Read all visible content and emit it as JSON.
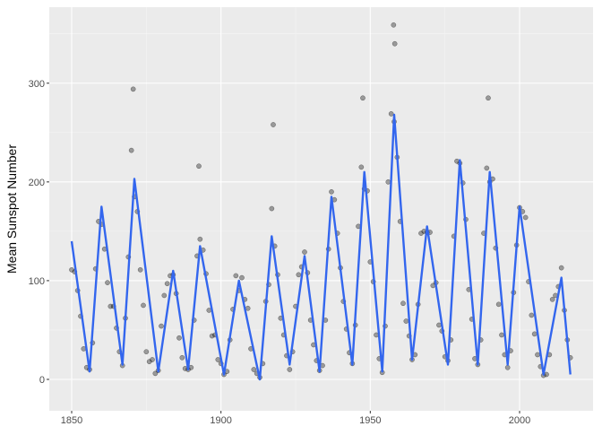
{
  "chart_data": {
    "type": "scatter",
    "ylabel": "Mean Sunspot Number",
    "xlim": [
      1842.5,
      2024.6
    ],
    "ylim": [
      -31.8,
      377
    ],
    "xticks": [
      1850,
      1900,
      1950,
      2000
    ],
    "yticks": [
      0,
      100,
      200,
      300
    ],
    "grid": true,
    "point_color": "#000000",
    "line_color": "#3366ee",
    "x": [
      1850,
      1851,
      1852,
      1853,
      1854,
      1855,
      1856,
      1857,
      1858,
      1859,
      1860,
      1861,
      1862,
      1863,
      1864,
      1865,
      1866,
      1867,
      1868,
      1869,
      1870,
      1871,
      1872,
      1873,
      1874,
      1875,
      1876,
      1877,
      1878,
      1879,
      1880,
      1881,
      1882,
      1883,
      1884,
      1885,
      1886,
      1887,
      1888,
      1889,
      1890,
      1891,
      1892,
      1893,
      1894,
      1895,
      1896,
      1897,
      1898,
      1899,
      1900,
      1901,
      1902,
      1903,
      1904,
      1905,
      1906,
      1907,
      1908,
      1909,
      1910,
      1911,
      1912,
      1913,
      1914,
      1915,
      1916,
      1917,
      1918,
      1919,
      1920,
      1921,
      1922,
      1923,
      1924,
      1925,
      1926,
      1927,
      1928,
      1929,
      1930,
      1931,
      1932,
      1933,
      1934,
      1935,
      1936,
      1937,
      1938,
      1939,
      1940,
      1941,
      1942,
      1943,
      1944,
      1945,
      1946,
      1947,
      1948,
      1949,
      1950,
      1951,
      1952,
      1953,
      1954,
      1955,
      1956,
      1957,
      1958,
      1959,
      1960,
      1961,
      1962,
      1963,
      1964,
      1965,
      1966,
      1967,
      1968,
      1969,
      1970,
      1971,
      1972,
      1973,
      1974,
      1975,
      1976,
      1977,
      1978,
      1979,
      1980,
      1981,
      1982,
      1983,
      1984,
      1985,
      1986,
      1987,
      1988,
      1989,
      1990,
      1991,
      1992,
      1993,
      1994,
      1995,
      1996,
      1997,
      1998,
      1999,
      2000,
      2001,
      2002,
      2003,
      2004,
      2005,
      2006,
      2007,
      2008,
      2009,
      2010,
      2011,
      2012,
      2013,
      2014,
      2015,
      2016,
      2017,
      1870.6,
      1957.8,
      1958.2,
      1989.5,
      1947.5,
      1917.5,
      1892.6
    ],
    "values": [
      111,
      109,
      90,
      64,
      31,
      12,
      10,
      37,
      112,
      160,
      157,
      132,
      98,
      74,
      74,
      52,
      28,
      14,
      62,
      124,
      232,
      185,
      170,
      111,
      75,
      28,
      18,
      20,
      6,
      9,
      54,
      85,
      97,
      105,
      106,
      87,
      42,
      22,
      11,
      10,
      12,
      60,
      125,
      142,
      131,
      107,
      70,
      44,
      45,
      20,
      16,
      5,
      8,
      40,
      71,
      105,
      90,
      103,
      81,
      72,
      31,
      10,
      6,
      2,
      16,
      79,
      96,
      173,
      135,
      106,
      62,
      45,
      24,
      10,
      28,
      74,
      106,
      114,
      129,
      108,
      60,
      35,
      19,
      9,
      14,
      60,
      132,
      190,
      182,
      148,
      113,
      79,
      51,
      27,
      16,
      55,
      155,
      215,
      193,
      191,
      119,
      99,
      45,
      21,
      7,
      54,
      200,
      269,
      261,
      225,
      160,
      77,
      59,
      44,
      20,
      25,
      76,
      148,
      150,
      149,
      149,
      95,
      98,
      55,
      49,
      23,
      19,
      40,
      145,
      221,
      219,
      199,
      162,
      91,
      61,
      21,
      15,
      40,
      148,
      214,
      200,
      203,
      133,
      76,
      45,
      25,
      12,
      29,
      88,
      136,
      174,
      170,
      164,
      99,
      65,
      46,
      25,
      13,
      4,
      5,
      25,
      81,
      85,
      94,
      113,
      70,
      40,
      22,
      294,
      359,
      340,
      285,
      285,
      258,
      216
    ],
    "smooth_x": [
      1850,
      1856,
      1860,
      1867,
      1871,
      1879,
      1884,
      1889,
      1893,
      1901,
      1906,
      1913,
      1917,
      1923,
      1928,
      1933,
      1937,
      1944,
      1948,
      1954,
      1958,
      1964,
      1969,
      1976,
      1980,
      1986,
      1990,
      1996,
      2000,
      2008,
      2014,
      2017
    ],
    "smooth_values": [
      140,
      8,
      175,
      15,
      203,
      8,
      110,
      10,
      135,
      5,
      100,
      0,
      145,
      15,
      125,
      8,
      185,
      15,
      210,
      8,
      268,
      20,
      155,
      15,
      222,
      15,
      210,
      15,
      175,
      5,
      103,
      5
    ]
  }
}
